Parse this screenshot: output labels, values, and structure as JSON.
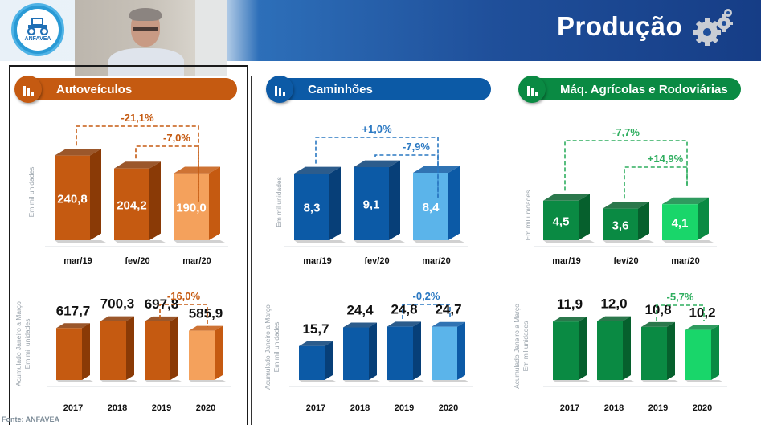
{
  "header": {
    "title": "Produção",
    "logo_text": "ANFAVEA",
    "gear_icon": "gears-icon",
    "video_feed": "presenter-video"
  },
  "footer": {
    "source": "Fonte: ANFAVEA"
  },
  "colors": {
    "orange": "#c55a11",
    "orange_dark": "#8a3a06",
    "orange_light": "#f4a15c",
    "blue": "#0c5aa6",
    "blue_dark": "#073f78",
    "blue_light": "#5bb4ea",
    "green": "#0a8a43",
    "green_dark": "#06602d",
    "green_light": "#19d66a"
  },
  "sections": [
    {
      "label": "Autoveículos",
      "color": "#c55a11"
    },
    {
      "label": "Caminhões",
      "color": "#0c5aa6"
    },
    {
      "label": "Máq. Agrícolas e Rodoviárias",
      "color": "#0a8a43"
    }
  ],
  "chart_data": [
    {
      "type": "bar",
      "title": "Autoveículos",
      "ylabel": "Em mil unidades",
      "categories": [
        "mar/19",
        "fev/20",
        "mar/20"
      ],
      "values": [
        240.8,
        204.2,
        190.0
      ],
      "labels": [
        "240,8",
        "204,2",
        "190,0"
      ],
      "ylim": [
        0,
        320
      ],
      "annotations": [
        {
          "text": "-21,1%",
          "from": 0,
          "to": 2
        },
        {
          "text": "-7,0%",
          "from": 1,
          "to": 2
        }
      ]
    },
    {
      "type": "bar",
      "title": "Caminhões",
      "ylabel": "Em mil unidades",
      "categories": [
        "mar/19",
        "fev/20",
        "mar/20"
      ],
      "values": [
        8.3,
        9.1,
        8.4
      ],
      "labels": [
        "8,3",
        "9,1",
        "8,4"
      ],
      "ylim": [
        0,
        11.5
      ],
      "annotations": [
        {
          "text": "+1,0%",
          "from": 0,
          "to": 2
        },
        {
          "text": "-7,9%",
          "from": 1,
          "to": 2
        }
      ]
    },
    {
      "type": "bar",
      "title": "Máq. Agrícolas e Rodoviárias",
      "ylabel": "Em mil unidades",
      "categories": [
        "mar/19",
        "fev/20",
        "mar/20"
      ],
      "values": [
        4.5,
        3.6,
        4.1
      ],
      "labels": [
        "4,5",
        "3,6",
        "4,1"
      ],
      "ylim": [
        0,
        7.5
      ],
      "annotations": [
        {
          "text": "-7,7%",
          "from": 0,
          "to": 2
        },
        {
          "text": "+14,9%",
          "from": 1,
          "to": 2
        }
      ]
    },
    {
      "type": "bar",
      "title": "Autoveículos acumulado",
      "ylabel": "Acumulado Janeiro a Março",
      "ylabel2": "Em mil unidades",
      "categories": [
        "2017",
        "2018",
        "2019",
        "2020"
      ],
      "values": [
        617.7,
        700.3,
        697.8,
        585.9
      ],
      "labels": [
        "617,7",
        "700,3",
        "697,8",
        "585,9"
      ],
      "ylim": [
        0,
        1050
      ],
      "annotations": [
        {
          "text": "-16,0%",
          "from": 2,
          "to": 3
        }
      ]
    },
    {
      "type": "bar",
      "title": "Caminhões acumulado",
      "ylabel": "Acumulado Janeiro a Março",
      "ylabel2": "Em mil unidades",
      "categories": [
        "2017",
        "2018",
        "2019",
        "2020"
      ],
      "values": [
        15.7,
        24.4,
        24.8,
        24.7
      ],
      "labels": [
        "15,7",
        "24,4",
        "24,8",
        "24,7"
      ],
      "ylim": [
        0,
        38
      ],
      "annotations": [
        {
          "text": "-0,2%",
          "from": 2,
          "to": 3
        }
      ]
    },
    {
      "type": "bar",
      "title": "Máq. Agrícolas acumulado",
      "ylabel": "Acumulado Janeiro a Março",
      "ylabel2": "Em mil unidades",
      "categories": [
        "2017",
        "2018",
        "2019",
        "2020"
      ],
      "values": [
        11.9,
        12.0,
        10.8,
        10.2
      ],
      "labels": [
        "11,9",
        "12,0",
        "10,8",
        "10,2"
      ],
      "ylim": [
        0,
        17
      ],
      "annotations": [
        {
          "text": "-5,7%",
          "from": 2,
          "to": 3
        }
      ]
    }
  ]
}
